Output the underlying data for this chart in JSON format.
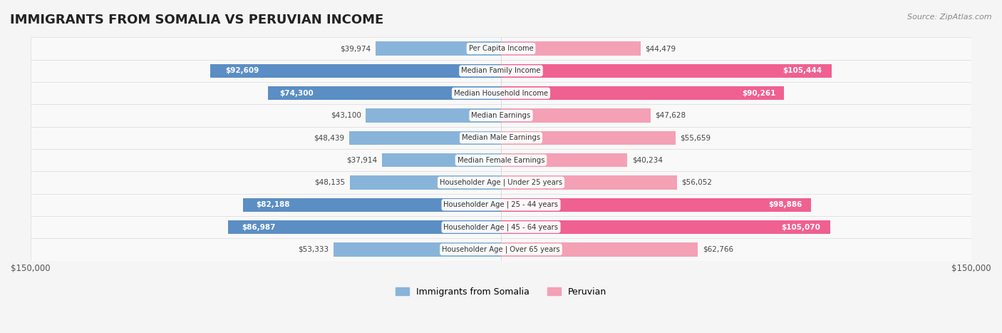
{
  "title": "IMMIGRANTS FROM SOMALIA VS PERUVIAN INCOME",
  "source": "Source: ZipAtlas.com",
  "categories": [
    "Per Capita Income",
    "Median Family Income",
    "Median Household Income",
    "Median Earnings",
    "Median Male Earnings",
    "Median Female Earnings",
    "Householder Age | Under 25 years",
    "Householder Age | 25 - 44 years",
    "Householder Age | 45 - 64 years",
    "Householder Age | Over 65 years"
  ],
  "somalia_values": [
    39974,
    92609,
    74300,
    43100,
    48439,
    37914,
    48135,
    82188,
    86987,
    53333
  ],
  "peruvian_values": [
    44479,
    105444,
    90261,
    47628,
    55659,
    40234,
    56052,
    98886,
    105070,
    62766
  ],
  "somalia_labels": [
    "$39,974",
    "$92,609",
    "$74,300",
    "$43,100",
    "$48,439",
    "$37,914",
    "$48,135",
    "$82,188",
    "$86,987",
    "$53,333"
  ],
  "peruvian_labels": [
    "$44,479",
    "$105,444",
    "$90,261",
    "$47,628",
    "$55,659",
    "$40,234",
    "$56,052",
    "$98,886",
    "$105,070",
    "$62,766"
  ],
  "somalia_color_bar": "#89b4d9",
  "peruvian_color_bar": "#f4a0b5",
  "somalia_color_highlight": "#5b8ec4",
  "peruvian_color_highlight": "#f06090",
  "max_val": 150000,
  "bg_color": "#f5f5f5",
  "row_bg_color": "#ffffff",
  "row_alt_bg": "#f0f0f0",
  "legend_somalia": "Immigrants from Somalia",
  "legend_peruvian": "Peruvian",
  "xlim": 150000
}
